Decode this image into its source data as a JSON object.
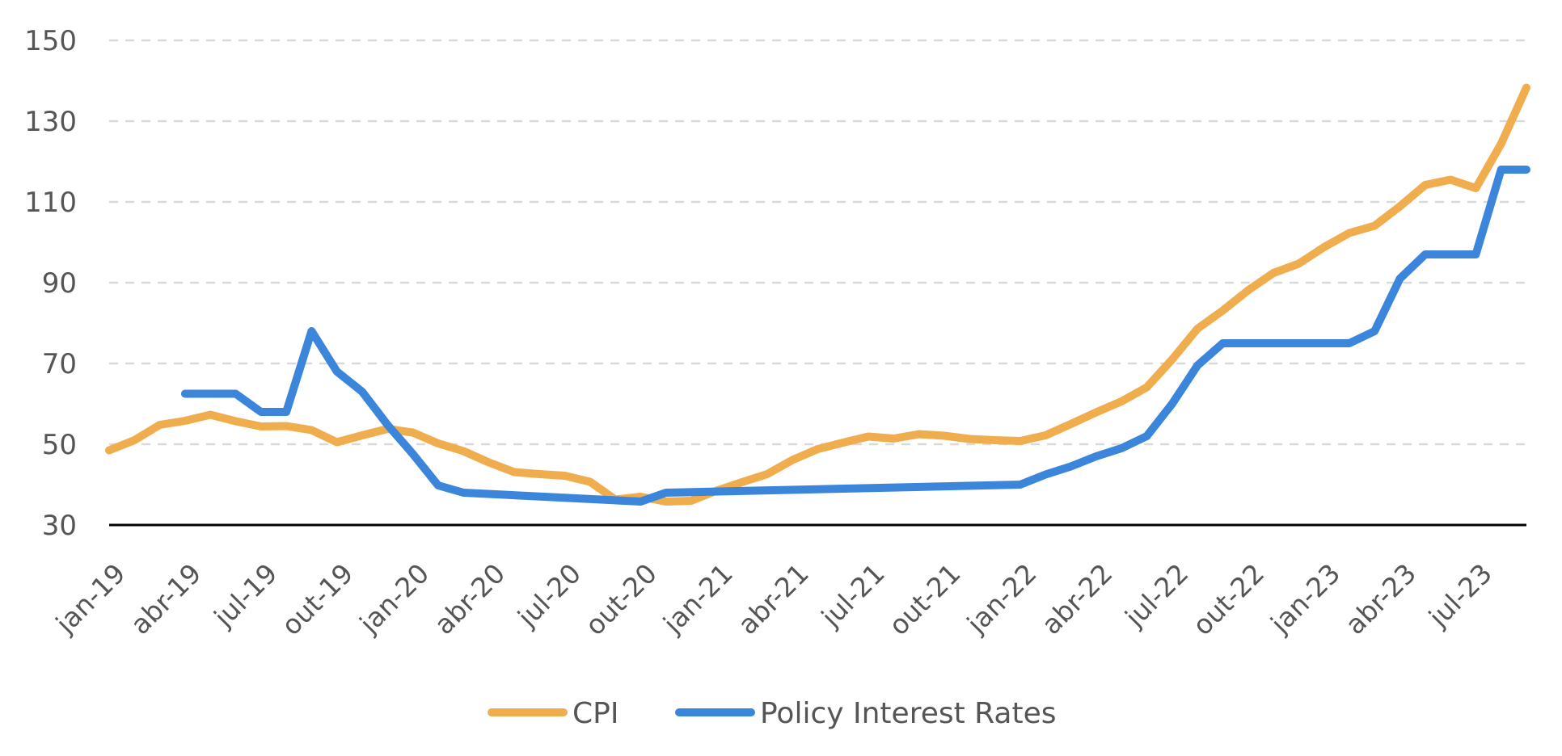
{
  "chart_data": {
    "type": "line",
    "ylim": [
      30,
      150
    ],
    "yticks": [
      30,
      50,
      70,
      90,
      110,
      130,
      150
    ],
    "grid": true,
    "legend_position": "bottom",
    "x": [
      "jan-19",
      "fev-19",
      "mar-19",
      "abr-19",
      "mai-19",
      "jun-19",
      "jul-19",
      "ago-19",
      "set-19",
      "out-19",
      "nov-19",
      "dez-19",
      "jan-20",
      "fev-20",
      "mar-20",
      "abr-20",
      "mai-20",
      "jun-20",
      "jul-20",
      "ago-20",
      "set-20",
      "out-20",
      "nov-20",
      "dez-20",
      "jan-21",
      "fev-21",
      "mar-21",
      "abr-21",
      "mai-21",
      "jun-21",
      "jul-21",
      "ago-21",
      "set-21",
      "out-21",
      "nov-21",
      "dez-21",
      "jan-22",
      "fev-22",
      "mar-22",
      "abr-22",
      "mai-22",
      "jun-22",
      "jul-22",
      "ago-22",
      "set-22",
      "out-22",
      "nov-22",
      "dez-22",
      "jan-23",
      "fev-23",
      "mar-23",
      "abr-23",
      "mai-23",
      "jun-23",
      "jul-23",
      "ago-23",
      "set-23"
    ],
    "tick_labels": [
      "jan-19",
      "abr-19",
      "jul-19",
      "out-19",
      "jan-20",
      "abr-20",
      "jul-20",
      "out-20",
      "jan-21",
      "abr-21",
      "jul-21",
      "out-21",
      "jan-22",
      "abr-22",
      "jul-22",
      "out-22",
      "jan-23",
      "abr-23",
      "jul-23"
    ],
    "series": [
      {
        "name": "CPI",
        "color": "#F0AD4E",
        "values": [
          48.5,
          51,
          54.8,
          55.8,
          57.3,
          55.7,
          54.4,
          54.5,
          53.5,
          50.5,
          52.2,
          53.8,
          52.9,
          50.2,
          48.3,
          45.5,
          43.1,
          42.6,
          42.2,
          40.7,
          36.3,
          37,
          35.8,
          36,
          38.5,
          40.6,
          42.6,
          46.1,
          48.8,
          50.4,
          51.9,
          51.4,
          52.5,
          52.1,
          51.3,
          51,
          50.8,
          52.2,
          55,
          57.9,
          60.6,
          64.1,
          71,
          78.6,
          83.1,
          88.1,
          92.4,
          94.7,
          98.8,
          102.3,
          104.1,
          108.9,
          114.2,
          115.5,
          113.4,
          124.4,
          138.3
        ]
      },
      {
        "name": "Policy Interest Rates",
        "color": "#3B86DB",
        "values": [
          null,
          null,
          null,
          62.5,
          62.5,
          62.5,
          58,
          58,
          78,
          68,
          63,
          54.8,
          47.6,
          39.8,
          38,
          null,
          null,
          null,
          null,
          null,
          null,
          35.8,
          38,
          null,
          null,
          null,
          null,
          null,
          null,
          null,
          null,
          null,
          null,
          null,
          null,
          null,
          40,
          42.5,
          44.5,
          47,
          49,
          52,
          60,
          69.5,
          75,
          75,
          75,
          75,
          75,
          75,
          78,
          91,
          97,
          97,
          97,
          118,
          118
        ]
      }
    ]
  }
}
